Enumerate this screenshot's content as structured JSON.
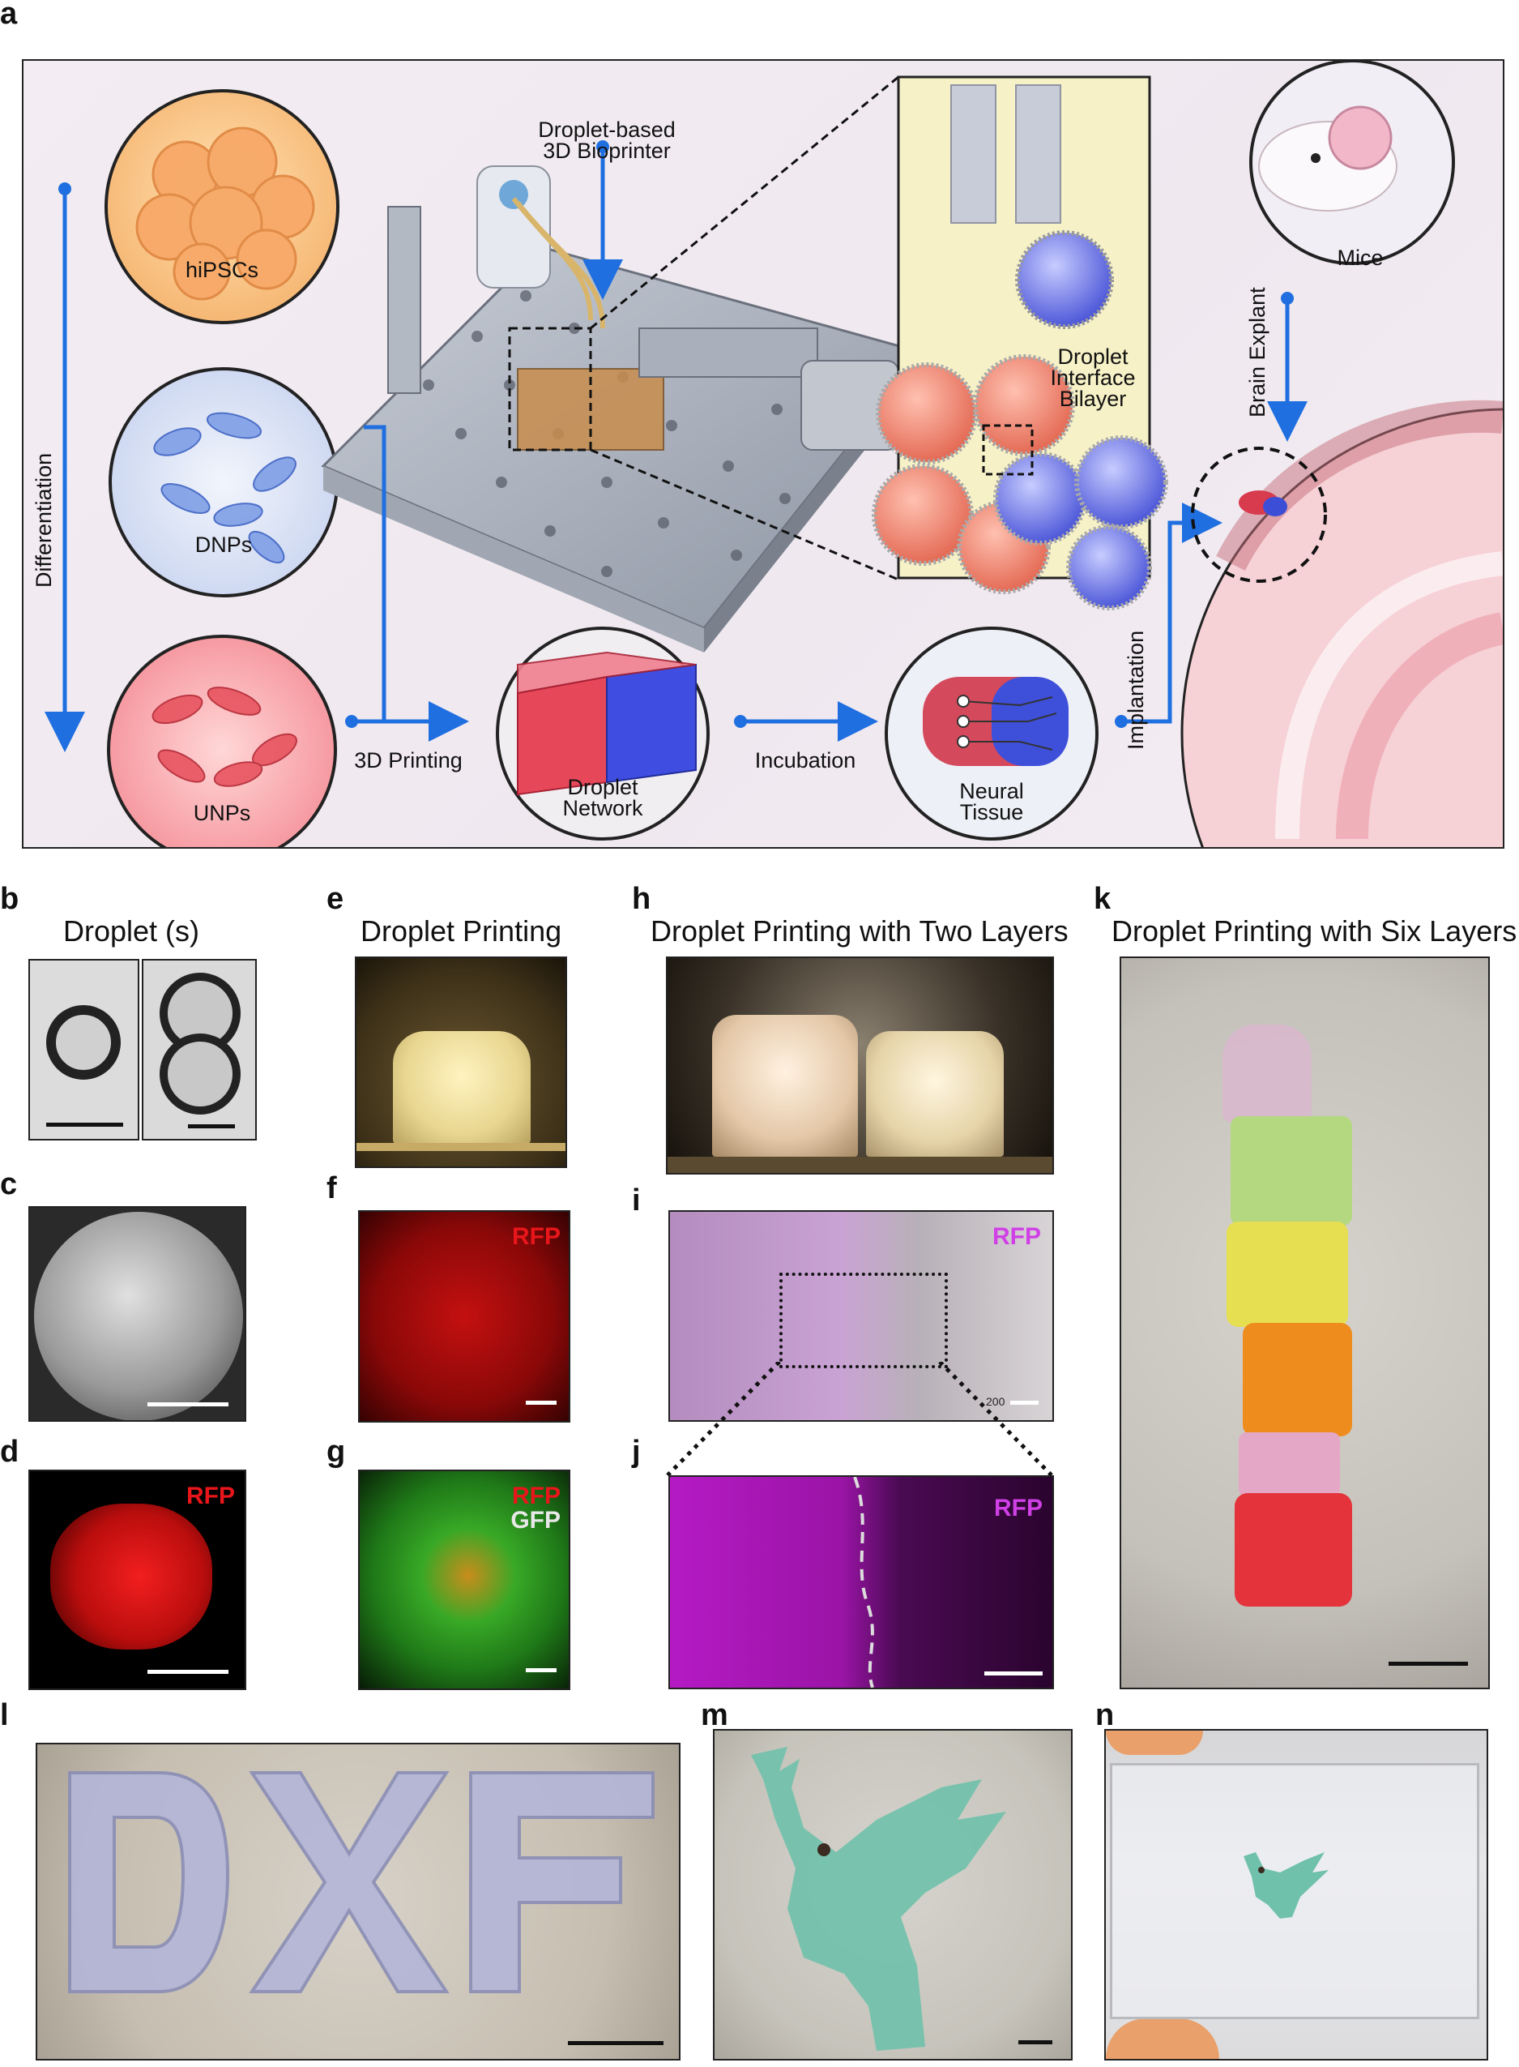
{
  "panels": {
    "a": {
      "label": "a",
      "differentiation": "Differentiation",
      "hipscs": "hiPSCs",
      "dnps": "DNPs",
      "unps": "UNPs",
      "bioprinter_line1": "Droplet-based",
      "bioprinter_line2": "3D Bioprinter",
      "printing": "3D Printing",
      "network_line1": "Droplet",
      "network_line2": "Network",
      "incubation": "Incubation",
      "tissue_line1": "Neural",
      "tissue_line2": "Tissue",
      "implantation": "Implantation",
      "bilayer_line1": "Droplet",
      "bilayer_line2": "Interface",
      "bilayer_line3": "Bilayer",
      "mice": "Mice",
      "brain_explant": "Brain Explant"
    },
    "b": {
      "label": "b",
      "title": "Droplet (s)"
    },
    "c": {
      "label": "c"
    },
    "d": {
      "label": "d",
      "tag": "RFP"
    },
    "e": {
      "label": "e",
      "title": "Droplet Printing"
    },
    "f": {
      "label": "f",
      "tag": "RFP"
    },
    "g": {
      "label": "g",
      "tag1": "RFP",
      "tag2": "GFP"
    },
    "h": {
      "label": "h",
      "title": "Droplet Printing with Two Layers"
    },
    "i": {
      "label": "i",
      "tag": "RFP",
      "scale_text": "200"
    },
    "j": {
      "label": "j",
      "tag": "RFP"
    },
    "k": {
      "label": "k",
      "title": "Droplet Printing with Six Layers"
    },
    "l": {
      "label": "l"
    },
    "m": {
      "label": "m"
    },
    "n": {
      "label": "n"
    }
  },
  "colors": {
    "arrow_blue": "#1f6fe0",
    "rfp_red": "#e8161a",
    "rfp_magenta": "#d040e6",
    "gfp_white": "#e8e8e8"
  }
}
